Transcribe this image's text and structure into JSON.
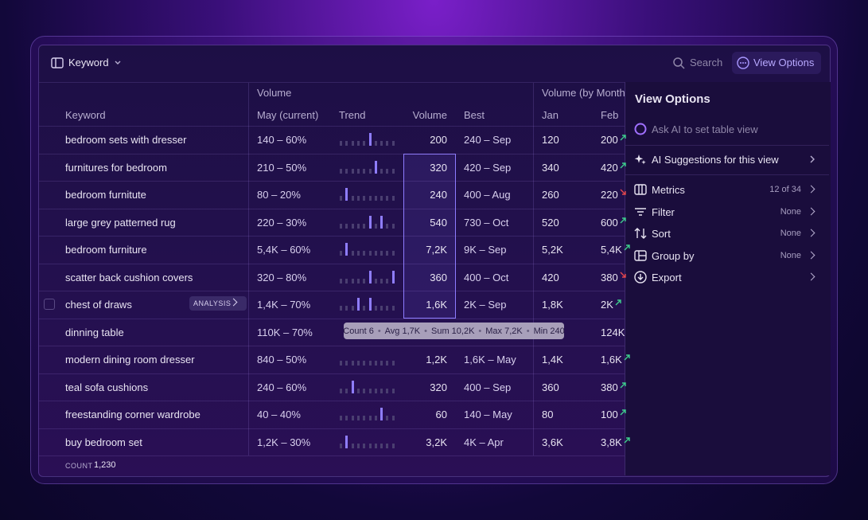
{
  "toolbar": {
    "view_selector": "Keyword",
    "search": "Search",
    "view_options": "View Options"
  },
  "table": {
    "group_headers": [
      "Volume",
      "Volume (by Months"
    ],
    "columns": [
      "Keyword",
      "May (current)",
      "Trend",
      "Volume",
      "Best",
      "Jan",
      "Feb"
    ],
    "rows": [
      {
        "keyword": "bedroom sets with dresser",
        "may": "140 – 60%",
        "trend": [
          3,
          3,
          3,
          3,
          3,
          8,
          3,
          3,
          3,
          3
        ],
        "volume": "200",
        "best": "240 – Sep",
        "jan": "120",
        "feb": "200",
        "feb_dir": "up"
      },
      {
        "keyword": "furnitures for bedroom",
        "may": "210 – 50%",
        "trend": [
          3,
          3,
          3,
          3,
          3,
          3,
          8,
          3,
          3,
          3
        ],
        "volume": "320",
        "best": "420 – Sep",
        "jan": "340",
        "feb": "420",
        "feb_dir": "up"
      },
      {
        "keyword": "bedroom furnitute",
        "may": "80 – 20%",
        "trend": [
          3,
          8,
          3,
          3,
          3,
          3,
          3,
          3,
          3,
          3
        ],
        "volume": "240",
        "best": "400 – Aug",
        "jan": "260",
        "feb": "220",
        "feb_dir": "down"
      },
      {
        "keyword": "large grey patterned rug",
        "may": "220 – 30%",
        "trend": [
          3,
          3,
          3,
          3,
          3,
          8,
          3,
          8,
          3,
          3
        ],
        "volume": "540",
        "best": "730 – Oct",
        "jan": "520",
        "feb": "600",
        "feb_dir": "up"
      },
      {
        "keyword": "bedroom furniture",
        "may": "5,4K – 60%",
        "trend": [
          3,
          8,
          3,
          3,
          3,
          3,
          3,
          3,
          3,
          3
        ],
        "volume": "7,2K",
        "best": "9K – Sep",
        "jan": "5,2K",
        "feb": "5,4K",
        "feb_dir": "up"
      },
      {
        "keyword": "scatter back cushion covers",
        "may": "320 – 80%",
        "trend": [
          3,
          3,
          3,
          3,
          3,
          8,
          3,
          3,
          3,
          8
        ],
        "volume": "360",
        "best": "400 – Oct",
        "jan": "420",
        "feb": "380",
        "feb_dir": "down"
      },
      {
        "keyword": "chest of draws",
        "badge": "ANALYSIS",
        "may": "1,4K – 70%",
        "trend": [
          3,
          3,
          3,
          8,
          3,
          8,
          3,
          3,
          3,
          3
        ],
        "volume": "1,6K",
        "best": "2K – Sep",
        "jan": "1,8K",
        "feb": "2K",
        "feb_dir": "up"
      },
      {
        "keyword": "dinning table",
        "may": "110K – 70%",
        "feb": "124K"
      },
      {
        "keyword": "modern dining room dresser",
        "may": "840 – 50%",
        "trend": [
          3,
          3,
          3,
          3,
          3,
          3,
          3,
          3,
          3,
          3
        ],
        "volume": "1,2K",
        "best": "1,6K – May",
        "jan": "1,4K",
        "feb": "1,6K",
        "feb_dir": "up"
      },
      {
        "keyword": "teal sofa cushions",
        "may": "240 – 60%",
        "trend": [
          3,
          3,
          8,
          3,
          3,
          3,
          3,
          3,
          3,
          3
        ],
        "volume": "320",
        "best": "400 – Sep",
        "jan": "360",
        "feb": "380",
        "feb_dir": "up"
      },
      {
        "keyword": "freestanding corner wardrobe",
        "may": "40 – 40%",
        "trend": [
          3,
          3,
          3,
          3,
          3,
          3,
          3,
          8,
          3,
          3
        ],
        "volume": "60",
        "best": "140 – May",
        "jan": "80",
        "feb": "100",
        "feb_dir": "up"
      },
      {
        "keyword": "buy bedroom set",
        "may": "1,2K – 30%",
        "trend": [
          3,
          8,
          3,
          3,
          3,
          3,
          3,
          3,
          3,
          3
        ],
        "volume": "3,2K",
        "best": "4K – Apr",
        "jan": "3,6K",
        "feb": "3,8K",
        "feb_dir": "up"
      }
    ],
    "footer": {
      "label": "COUNT",
      "value": "1,230"
    }
  },
  "tooltip": [
    "Count 6",
    "Avg 1,7K",
    "Sum 10,2K",
    "Max 7,2K",
    "Min 240"
  ],
  "panel": {
    "title": "View Options",
    "ask_ai": "Ask AI to set table view",
    "suggestions": "AI Suggestions for this view",
    "items": [
      {
        "label": "Metrics",
        "value": "12 of 34"
      },
      {
        "label": "Filter",
        "value": "None"
      },
      {
        "label": "Sort",
        "value": "None"
      },
      {
        "label": "Group by",
        "value": "None"
      },
      {
        "label": "Export"
      }
    ]
  }
}
